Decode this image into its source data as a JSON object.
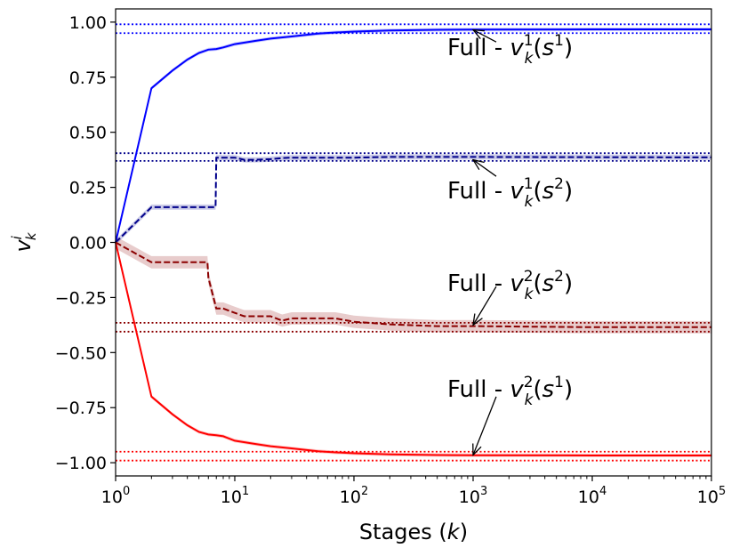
{
  "chart_data": {
    "type": "line",
    "title": "",
    "xlabel_parts": [
      "Stages (",
      "k",
      ")"
    ],
    "ylabel_parts": {
      "base": "v",
      "sup": "i",
      "sub": "k"
    },
    "xscale": "log",
    "xlim": [
      1,
      100000
    ],
    "ylim": [
      -1.06,
      1.06
    ],
    "xticks": [
      {
        "value": 1,
        "base": "10",
        "exp": "0"
      },
      {
        "value": 10,
        "base": "10",
        "exp": "1"
      },
      {
        "value": 100,
        "base": "10",
        "exp": "2"
      },
      {
        "value": 1000,
        "base": "10",
        "exp": "3"
      },
      {
        "value": 10000,
        "base": "10",
        "exp": "4"
      },
      {
        "value": 100000,
        "base": "10",
        "exp": "5"
      }
    ],
    "yticks": [
      {
        "value": 1.0,
        "label": "1.00"
      },
      {
        "value": 0.75,
        "label": "0.75"
      },
      {
        "value": 0.5,
        "label": "0.50"
      },
      {
        "value": 0.25,
        "label": "0.25"
      },
      {
        "value": 0.0,
        "label": "0.00"
      },
      {
        "value": -0.25,
        "label": "−0.25"
      },
      {
        "value": -0.5,
        "label": "−0.50"
      },
      {
        "value": -0.75,
        "label": "−0.75"
      },
      {
        "value": -1.0,
        "label": "−1.00"
      }
    ],
    "grid": false,
    "series": [
      {
        "name": "v_k^1(s^1)",
        "color": "#0000ff",
        "dash": "solid",
        "x": [
          1,
          2,
          3,
          4,
          5,
          6,
          7,
          8,
          10,
          15,
          20,
          30,
          50,
          70,
          100,
          200,
          500,
          1000,
          10000,
          100000
        ],
        "y": [
          0,
          0.7,
          0.78,
          0.83,
          0.86,
          0.875,
          0.878,
          0.885,
          0.9,
          0.915,
          0.925,
          0.935,
          0.948,
          0.953,
          0.957,
          0.962,
          0.965,
          0.966,
          0.967,
          0.967
        ],
        "band": 0.008
      },
      {
        "name": "v_k^1(s^2)",
        "color": "#00008b",
        "dash": "dashed",
        "x": [
          1,
          2,
          3,
          4,
          5,
          6,
          6.9,
          7,
          8,
          10,
          12,
          15,
          20,
          25,
          30,
          50,
          100,
          200,
          500,
          1000,
          10000,
          100000
        ],
        "y": [
          0,
          0.16,
          0.16,
          0.16,
          0.16,
          0.16,
          0.16,
          0.385,
          0.385,
          0.385,
          0.375,
          0.375,
          0.378,
          0.383,
          0.385,
          0.385,
          0.385,
          0.388,
          0.388,
          0.388,
          0.387,
          0.386
        ],
        "band": 0.012
      },
      {
        "name": "v_k^2(s^2)",
        "color": "#8b0000",
        "dash": "dashed",
        "x": [
          1,
          2,
          3,
          4,
          5,
          5.9,
          6,
          7,
          8,
          10,
          12,
          15,
          20,
          25,
          30,
          50,
          70,
          100,
          200,
          500,
          1000,
          10000,
          100000
        ],
        "y": [
          0,
          -0.09,
          -0.09,
          -0.09,
          -0.09,
          -0.09,
          -0.16,
          -0.3,
          -0.3,
          -0.32,
          -0.335,
          -0.335,
          -0.335,
          -0.355,
          -0.345,
          -0.345,
          -0.345,
          -0.36,
          -0.372,
          -0.38,
          -0.38,
          -0.385,
          -0.385
        ],
        "band": 0.028
      },
      {
        "name": "v_k^2(s^1)",
        "color": "#ff0000",
        "dash": "solid",
        "x": [
          1,
          2,
          3,
          4,
          5,
          6,
          7,
          8,
          10,
          15,
          20,
          30,
          50,
          70,
          100,
          200,
          500,
          1000,
          10000,
          100000
        ],
        "y": [
          0,
          -0.7,
          -0.78,
          -0.83,
          -0.86,
          -0.872,
          -0.875,
          -0.88,
          -0.9,
          -0.915,
          -0.925,
          -0.935,
          -0.948,
          -0.953,
          -0.957,
          -0.962,
          -0.965,
          -0.966,
          -0.967,
          -0.967
        ],
        "band": 0.008
      }
    ],
    "reference_lines": [
      {
        "series": "v_k^1(s^1)",
        "color": "#0000ff",
        "values": [
          0.99,
          0.95
        ]
      },
      {
        "series": "v_k^1(s^2)",
        "color": "#00008b",
        "values": [
          0.405,
          0.37
        ]
      },
      {
        "series": "v_k^2(s^2)",
        "color": "#8b0000",
        "values": [
          -0.365,
          -0.405
        ]
      },
      {
        "series": "v_k^2(s^1)",
        "color": "#ff0000",
        "values": [
          -0.95,
          -0.99
        ]
      }
    ],
    "annotations": [
      {
        "prefix": "Full - v",
        "sup": "1",
        "sub": "k",
        "arg_open": "(s",
        "arg_sup": "1",
        "arg_close": ")",
        "arrow_to": {
          "x": 1000,
          "y": 0.965
        }
      },
      {
        "prefix": "Full - v",
        "sup": "1",
        "sub": "k",
        "arg_open": "(s",
        "arg_sup": "2",
        "arg_close": ")",
        "arrow_to": {
          "x": 1000,
          "y": 0.375
        }
      },
      {
        "prefix": "Full - v",
        "sup": "2",
        "sub": "k",
        "arg_open": "(s",
        "arg_sup": "2",
        "arg_close": ")",
        "arrow_to": {
          "x": 1000,
          "y": -0.375
        }
      },
      {
        "prefix": "Full - v",
        "sup": "2",
        "sub": "k",
        "arg_open": "(s",
        "arg_sup": "1",
        "arg_close": ")",
        "arrow_to": {
          "x": 1000,
          "y": -0.965
        }
      }
    ]
  }
}
